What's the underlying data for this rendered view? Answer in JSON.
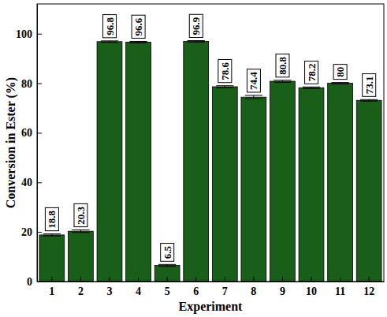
{
  "chart_data": {
    "type": "bar",
    "x_label": "Experiment",
    "y_label": "Conversion in Ester (%)",
    "categories": [
      "1",
      "2",
      "3",
      "4",
      "5",
      "6",
      "7",
      "8",
      "9",
      "10",
      "11",
      "12"
    ],
    "values": [
      18.8,
      20.3,
      96.8,
      96.6,
      6.5,
      96.9,
      78.6,
      74.4,
      80.8,
      78.2,
      80,
      73.1
    ],
    "errors": [
      0.4,
      0.5,
      0.3,
      0.3,
      0.4,
      0.3,
      0.4,
      0.7,
      0.4,
      0.3,
      0.3,
      0.3
    ],
    "color": "#195e19",
    "ylim": [
      0,
      112
    ],
    "yticks": [
      0,
      20,
      40,
      60,
      80,
      100
    ],
    "grid": false,
    "data_labels": true
  }
}
